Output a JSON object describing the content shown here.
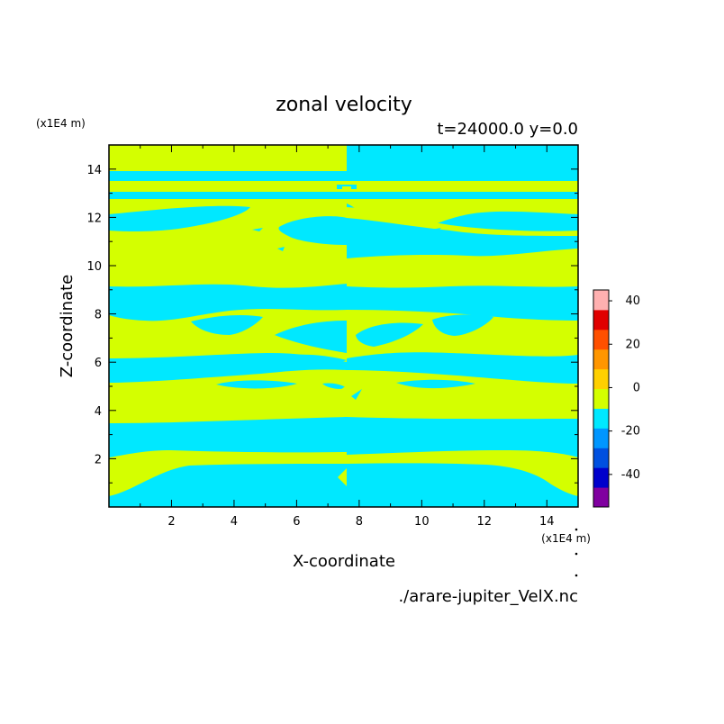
{
  "chart_data": {
    "type": "heatmap",
    "title": "zonal velocity",
    "subtitle": "t=24000.0 y=0.0",
    "xlabel": "X-coordinate",
    "ylabel": "Z-coordinate",
    "x_unit": "(x1E4 m)",
    "y_unit": "(x1E4 m)",
    "source_file": "./arare-jupiter_VelX.nc",
    "xlim": [
      0,
      15
    ],
    "ylim": [
      0,
      15
    ],
    "x_ticks": [
      "2",
      "4",
      "6",
      "8",
      "10",
      "12",
      "14"
    ],
    "x_tick_values": [
      2,
      4,
      6,
      8,
      10,
      12,
      14
    ],
    "y_ticks": [
      "2",
      "4",
      "6",
      "8",
      "10",
      "12",
      "14"
    ],
    "y_tick_values": [
      2,
      4,
      6,
      8,
      10,
      12,
      14
    ],
    "colorbar": {
      "levels": [
        -50,
        -40,
        -30,
        -20,
        -10,
        0,
        10,
        20,
        30,
        40,
        50
      ],
      "tick_labels": [
        "40",
        "20",
        "0",
        "-20",
        "-40"
      ],
      "tick_values": [
        40,
        20,
        0,
        -20,
        -40
      ],
      "colors": [
        "#8000a0",
        "#0000cc",
        "#0050e0",
        "#0096ff",
        "#00e8ff",
        "#d4ff00",
        "#ffd000",
        "#ff9600",
        "#ff5000",
        "#e00000",
        "#ffb0b0"
      ]
    },
    "field_colors": {
      "positive_0_10": "#d4ff00",
      "negative_-10_0": "#00e8ff"
    },
    "regions": {
      "left_half": {
        "x_range": [
          0,
          7.6
        ],
        "note": "mostly 0 to 10 with horizontal bands of -10 to 0"
      },
      "right_half": {
        "x_range": [
          7.6,
          15
        ],
        "note": "mirror pattern, mostly -10 to 0 with bands of 0 to 10"
      }
    }
  }
}
